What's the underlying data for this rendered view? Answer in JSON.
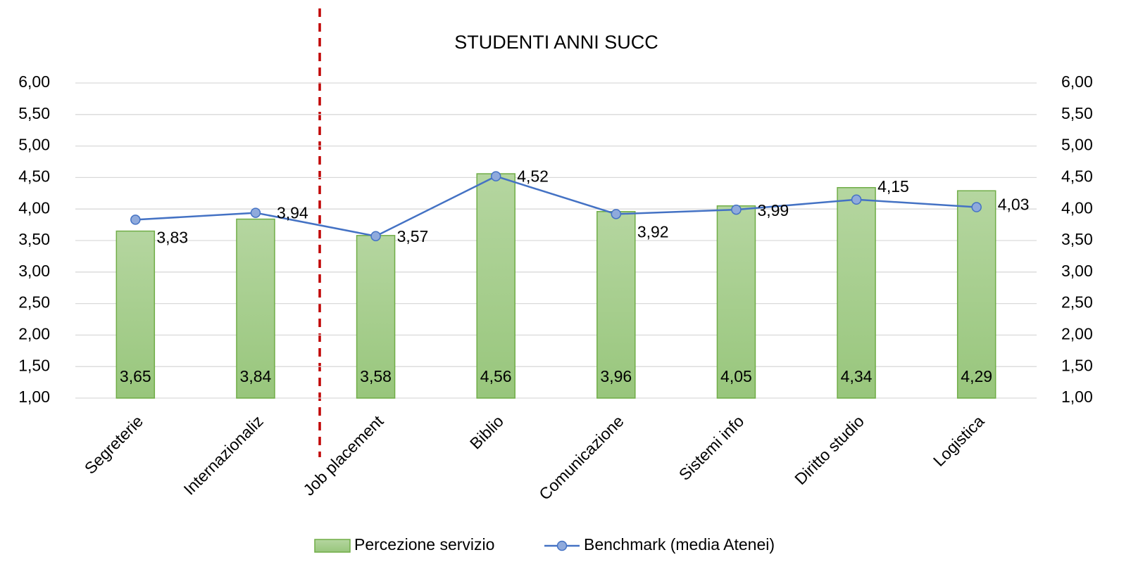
{
  "chart_data": {
    "type": "combo",
    "title": "STUDENTI ANNI SUCC",
    "categories": [
      "Segreterie",
      "Internazionaliz",
      "Job placement",
      "Biblio",
      "Comunicazione",
      "Sistemi info",
      "Diritto studio",
      "Logistica"
    ],
    "series": [
      {
        "name": "Percezione servizio",
        "type": "bar",
        "color": "#70ad47",
        "values": [
          3.65,
          3.84,
          3.58,
          4.56,
          3.96,
          4.05,
          4.34,
          4.29
        ],
        "value_labels": [
          "3,65",
          "3,84",
          "3,58",
          "4,56",
          "3,96",
          "4,05",
          "4,34",
          "4,29"
        ]
      },
      {
        "name": "Benchmark (media Atenei)",
        "type": "line",
        "axis": "y2",
        "color": "#4472c4",
        "values": [
          3.83,
          3.94,
          3.57,
          4.52,
          3.92,
          3.99,
          4.15,
          4.03
        ],
        "value_labels": [
          "3,83",
          "3,94",
          "3,57",
          "4,52",
          "3,92",
          "3,99",
          "4,15",
          "4,03"
        ]
      }
    ],
    "ylim": [
      1,
      6
    ],
    "yticks": [
      {
        "value": 1,
        "label": "1,00"
      },
      {
        "value": 1.5,
        "label": "1,50"
      },
      {
        "value": 2,
        "label": "2,00"
      },
      {
        "value": 2.5,
        "label": "2,50"
      },
      {
        "value": 3,
        "label": "3,00"
      },
      {
        "value": 3.5,
        "label": "3,50"
      },
      {
        "value": 4,
        "label": "4,00"
      },
      {
        "value": 4.5,
        "label": "4,50"
      },
      {
        "value": 5,
        "label": "5,00"
      },
      {
        "value": 5.5,
        "label": "5,50"
      },
      {
        "value": 6,
        "label": "6,00"
      }
    ],
    "y2lim": [
      1,
      6
    ],
    "y2ticks": [
      {
        "value": 1,
        "label": "1,00"
      },
      {
        "value": 1.5,
        "label": "1,50"
      },
      {
        "value": 2,
        "label": "2,00"
      },
      {
        "value": 2.5,
        "label": "2,50"
      },
      {
        "value": 3,
        "label": "3,00"
      },
      {
        "value": 3.5,
        "label": "3,50"
      },
      {
        "value": 4,
        "label": "4,00"
      },
      {
        "value": 4.5,
        "label": "4,50"
      },
      {
        "value": 5,
        "label": "5,00"
      },
      {
        "value": 5.5,
        "label": "5,50"
      },
      {
        "value": 6,
        "label": "6,00"
      }
    ],
    "grid": true,
    "legend": "bottom"
  }
}
